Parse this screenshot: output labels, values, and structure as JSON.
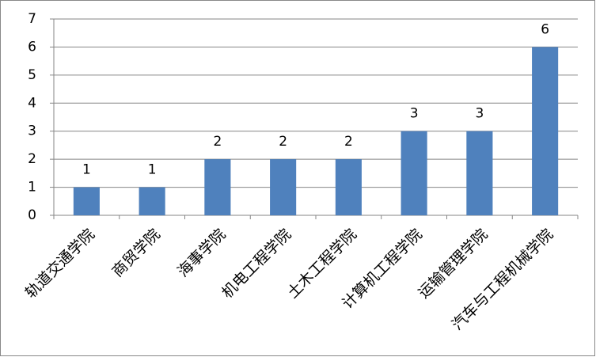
{
  "chart_data": {
    "type": "bar",
    "categories": [
      "轨道交通学院",
      "商贸学院",
      "海事学院",
      "机电工程学院",
      "土木工程学院",
      "计算机工程学院",
      "运输管理学院",
      "汽车与工程机械学院"
    ],
    "values": [
      1,
      1,
      2,
      2,
      2,
      3,
      3,
      6
    ],
    "color": "#4f81bd",
    "ylim": [
      0,
      7
    ],
    "yticks": [
      0,
      1,
      2,
      3,
      4,
      5,
      6,
      7
    ],
    "grid": true
  }
}
